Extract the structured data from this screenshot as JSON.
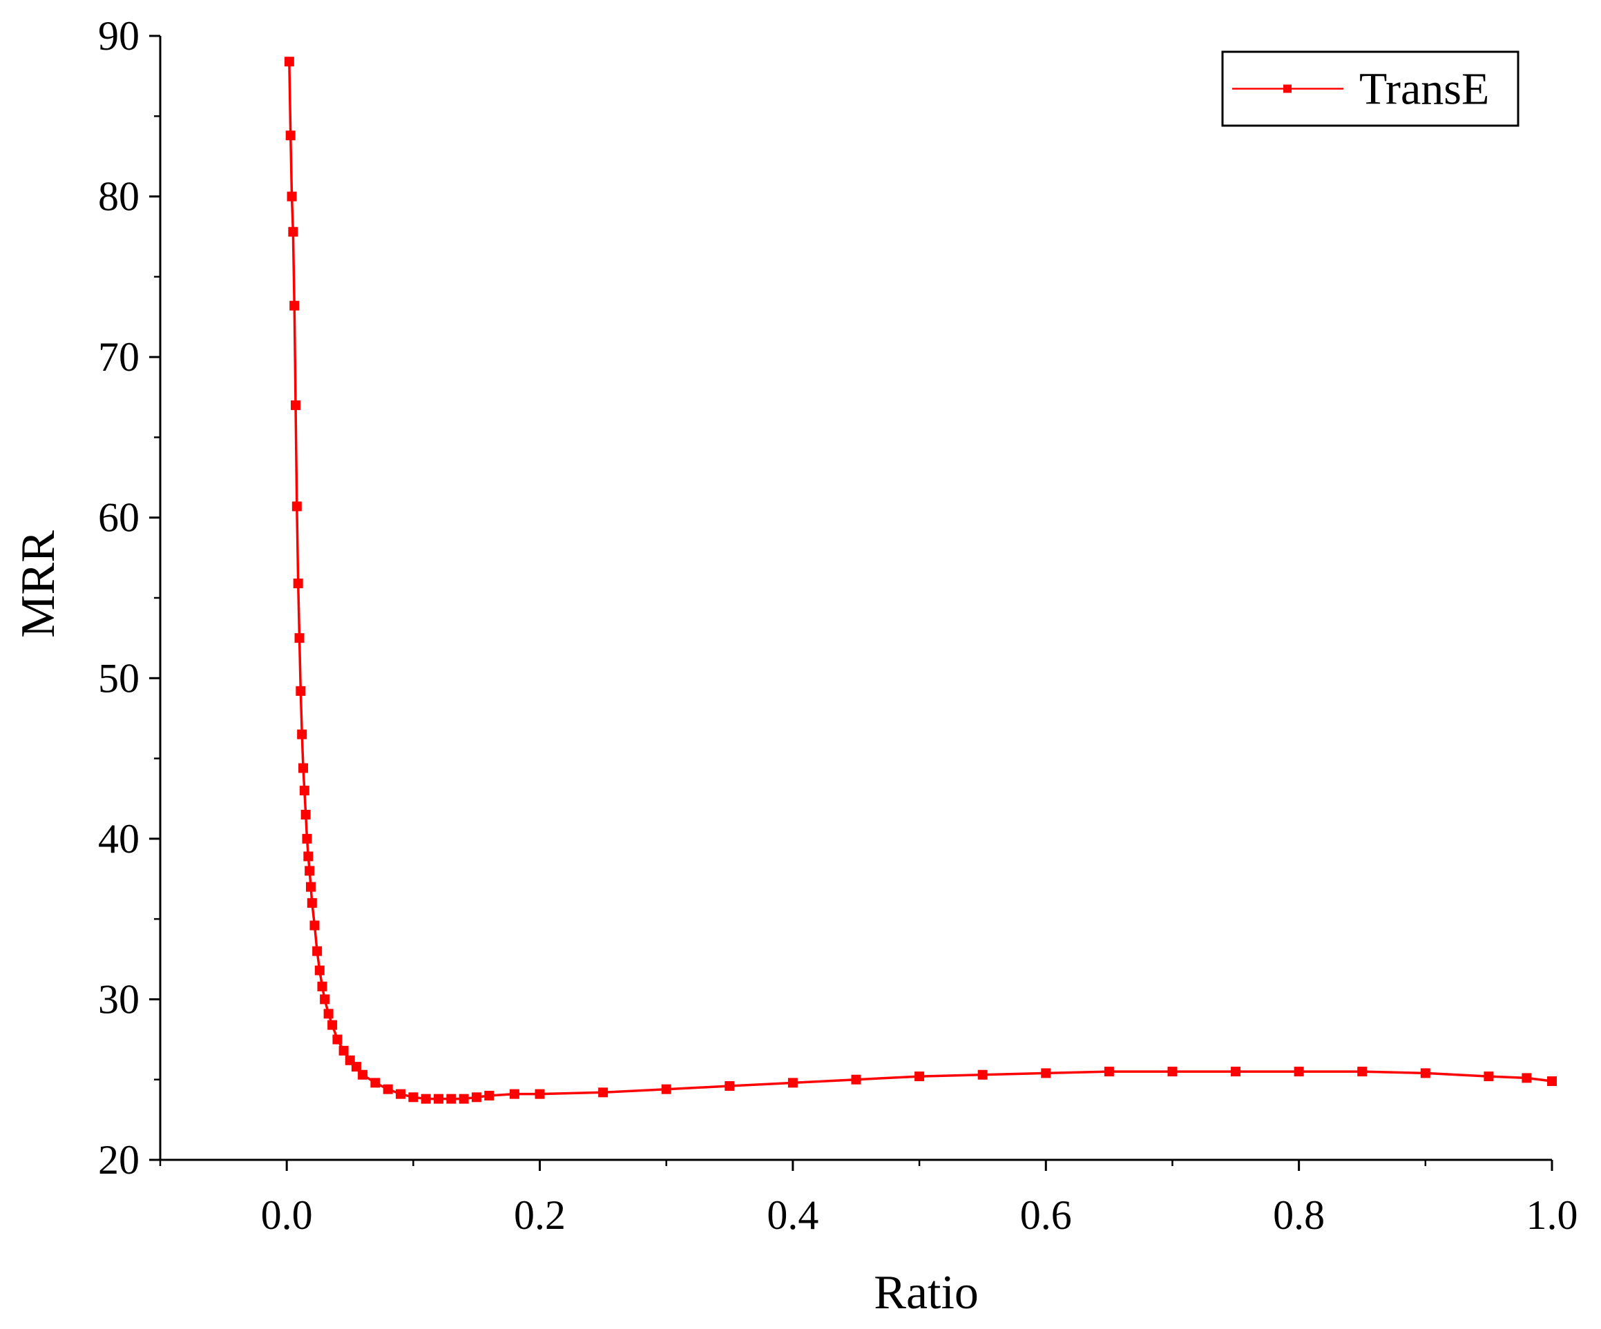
{
  "chart_data": {
    "type": "line",
    "title": "",
    "xlabel": "Ratio",
    "ylabel": "MRR",
    "xlim": [
      -0.1,
      1.0
    ],
    "ylim": [
      20,
      90
    ],
    "xticks": [
      0.0,
      0.2,
      0.4,
      0.6,
      0.8,
      1.0
    ],
    "xtick_labels": [
      "0.0",
      "0.2",
      "0.4",
      "0.6",
      "0.8",
      "1.0"
    ],
    "yticks": [
      20,
      30,
      40,
      50,
      60,
      70,
      80,
      90
    ],
    "ytick_labels": [
      "20",
      "30",
      "40",
      "50",
      "60",
      "70",
      "80",
      "90"
    ],
    "grid": false,
    "legend_position": "top-right",
    "series": [
      {
        "name": "TransE",
        "color": "#ff0000",
        "marker": "square",
        "x": [
          0.002,
          0.003,
          0.004,
          0.005,
          0.006,
          0.007,
          0.008,
          0.009,
          0.01,
          0.011,
          0.012,
          0.013,
          0.014,
          0.015,
          0.016,
          0.017,
          0.018,
          0.019,
          0.02,
          0.022,
          0.024,
          0.026,
          0.028,
          0.03,
          0.033,
          0.036,
          0.04,
          0.045,
          0.05,
          0.055,
          0.06,
          0.07,
          0.08,
          0.09,
          0.1,
          0.11,
          0.12,
          0.13,
          0.14,
          0.15,
          0.16,
          0.18,
          0.2,
          0.25,
          0.3,
          0.35,
          0.4,
          0.45,
          0.5,
          0.55,
          0.6,
          0.65,
          0.7,
          0.75,
          0.8,
          0.85,
          0.9,
          0.95,
          0.98,
          1.0
        ],
        "y": [
          88.4,
          83.8,
          80.0,
          77.8,
          73.2,
          67.0,
          60.7,
          55.9,
          52.5,
          49.2,
          46.5,
          44.4,
          43.0,
          41.5,
          40.0,
          38.9,
          38.0,
          37.0,
          36.0,
          34.6,
          33.0,
          31.8,
          30.8,
          30.0,
          29.1,
          28.4,
          27.5,
          26.8,
          26.2,
          25.8,
          25.3,
          24.8,
          24.4,
          24.1,
          23.9,
          23.8,
          23.8,
          23.8,
          23.8,
          23.9,
          24.0,
          24.1,
          24.1,
          24.2,
          24.4,
          24.6,
          24.8,
          25.0,
          25.2,
          25.3,
          25.4,
          25.5,
          25.5,
          25.5,
          25.5,
          25.5,
          25.4,
          25.2,
          25.1,
          24.9
        ]
      }
    ]
  }
}
